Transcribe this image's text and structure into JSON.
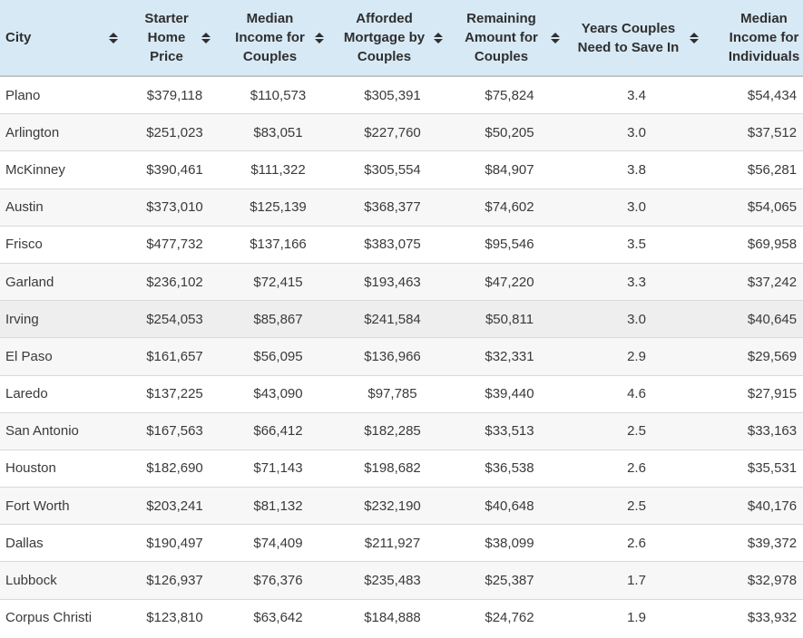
{
  "table": {
    "columns": [
      {
        "id": "city",
        "label": "City"
      },
      {
        "id": "starter-home-price",
        "label": "Starter Home Price"
      },
      {
        "id": "median-income-couples",
        "label": "Median Income for Couples"
      },
      {
        "id": "afforded-mortgage-couples",
        "label": "Afforded Mortgage by Couples"
      },
      {
        "id": "remaining-amount-couples",
        "label": "Remaining Amount for Couples"
      },
      {
        "id": "years-couples-save",
        "label": "Years Couples Need to Save In"
      },
      {
        "id": "median-income-individuals",
        "label": "Median Income for Individuals"
      }
    ],
    "rows": [
      [
        "Plano",
        "$379,118",
        "$110,573",
        "$305,391",
        "$75,824",
        "3.4",
        "$54,434"
      ],
      [
        "Arlington",
        "$251,023",
        "$83,051",
        "$227,760",
        "$50,205",
        "3.0",
        "$37,512"
      ],
      [
        "McKinney",
        "$390,461",
        "$111,322",
        "$305,554",
        "$84,907",
        "3.8",
        "$56,281"
      ],
      [
        "Austin",
        "$373,010",
        "$125,139",
        "$368,377",
        "$74,602",
        "3.0",
        "$54,065"
      ],
      [
        "Frisco",
        "$477,732",
        "$137,166",
        "$383,075",
        "$95,546",
        "3.5",
        "$69,958"
      ],
      [
        "Garland",
        "$236,102",
        "$72,415",
        "$193,463",
        "$47,220",
        "3.3",
        "$37,242"
      ],
      [
        "Irving",
        "$254,053",
        "$85,867",
        "$241,584",
        "$50,811",
        "3.0",
        "$40,645"
      ],
      [
        "El Paso",
        "$161,657",
        "$56,095",
        "$136,966",
        "$32,331",
        "2.9",
        "$29,569"
      ],
      [
        "Laredo",
        "$137,225",
        "$43,090",
        "$97,785",
        "$39,440",
        "4.6",
        "$27,915"
      ],
      [
        "San Antonio",
        "$167,563",
        "$66,412",
        "$182,285",
        "$33,513",
        "2.5",
        "$33,163"
      ],
      [
        "Houston",
        "$182,690",
        "$71,143",
        "$198,682",
        "$36,538",
        "2.6",
        "$35,531"
      ],
      [
        "Fort Worth",
        "$203,241",
        "$81,132",
        "$232,190",
        "$40,648",
        "2.5",
        "$40,176"
      ],
      [
        "Dallas",
        "$190,497",
        "$74,409",
        "$211,927",
        "$38,099",
        "2.6",
        "$39,372"
      ],
      [
        "Lubbock",
        "$126,937",
        "$76,376",
        "$235,483",
        "$25,387",
        "1.7",
        "$32,978"
      ],
      [
        "Corpus Christi",
        "$123,810",
        "$63,642",
        "$184,888",
        "$24,762",
        "1.9",
        "$33,932"
      ]
    ],
    "highlighted_row_index": 6,
    "colors": {
      "header_bg": "#d7e9f5",
      "header_border": "#c2c7c9",
      "row_stripe": "#f7f7f8",
      "row_highlight": "#eeeeef",
      "row_divider": "#d9d9d9",
      "header_text": "#2f2f2f",
      "body_text": "#3a3a3a",
      "sort_icon": "#2f2f2f"
    }
  }
}
